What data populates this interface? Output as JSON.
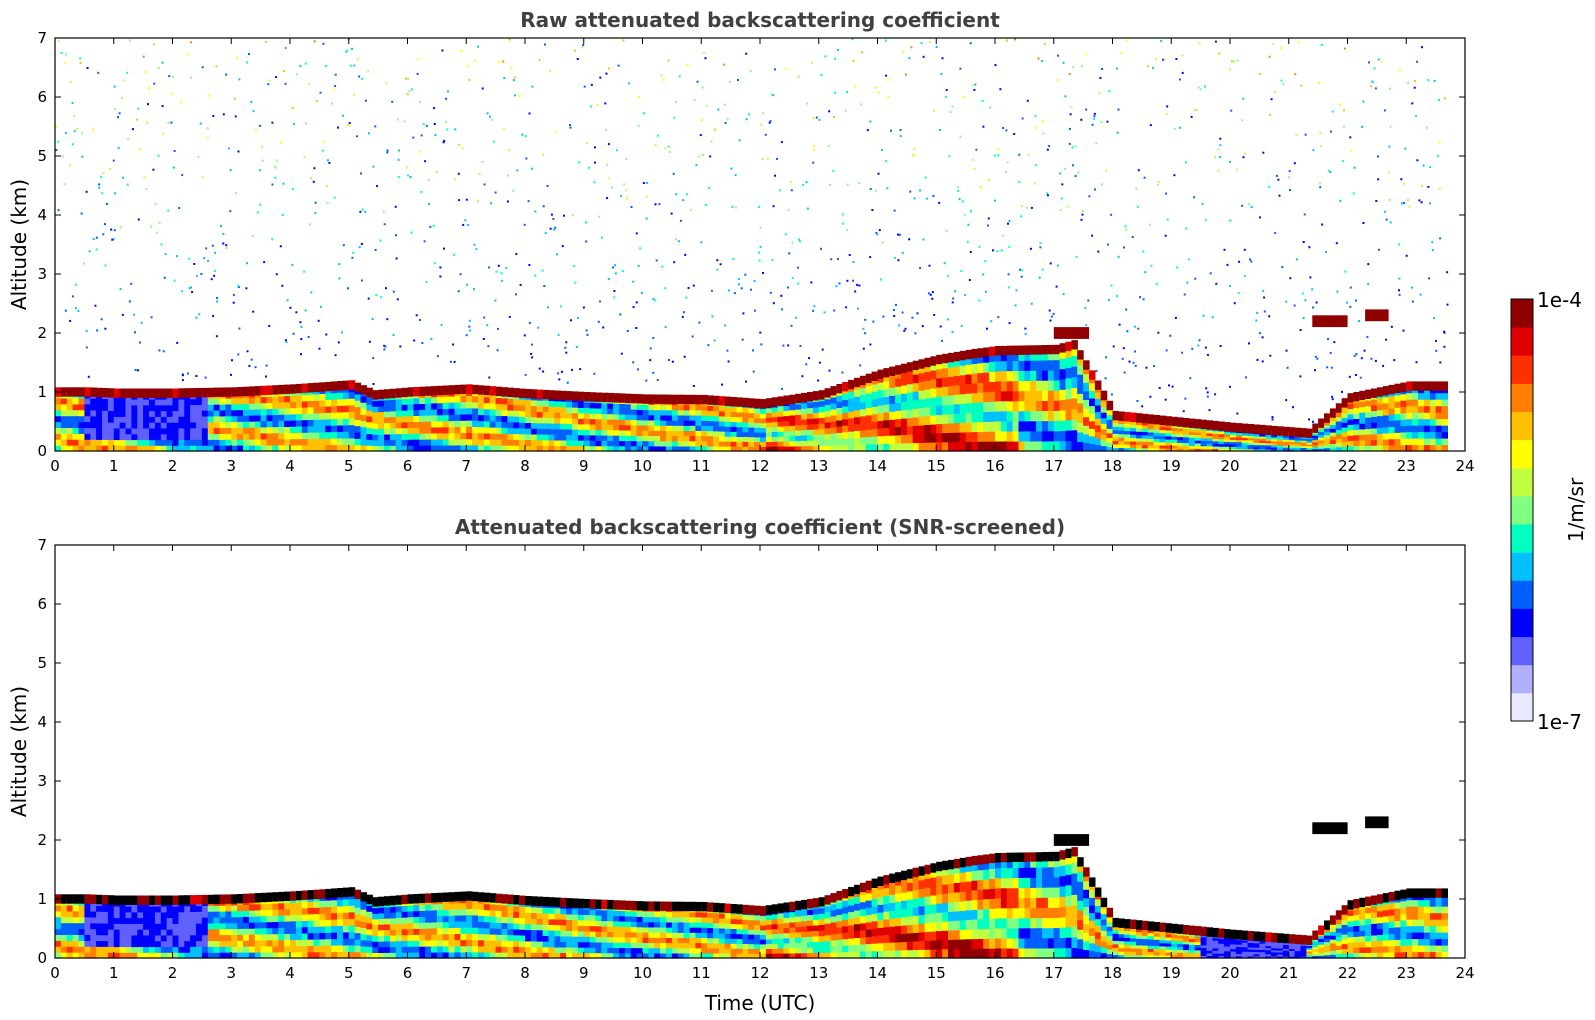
{
  "chart_data": [
    {
      "type": "heatmap",
      "title": "Raw attenuated backscattering coefficient",
      "xlabel": "",
      "ylabel": "Altitude (km)",
      "xlim": [
        0,
        24
      ],
      "ylim": [
        0,
        7
      ],
      "xticks": [
        0,
        1,
        2,
        3,
        4,
        5,
        6,
        7,
        8,
        9,
        10,
        11,
        12,
        13,
        14,
        15,
        16,
        17,
        18,
        19,
        20,
        21,
        22,
        23,
        24
      ],
      "yticks": [
        0,
        1,
        2,
        3,
        4,
        5,
        6,
        7
      ],
      "layers": {
        "boundary_layer_top_km": [
          [
            0,
            1.0
          ],
          [
            0.5,
            1.0
          ],
          [
            1,
            0.98
          ],
          [
            2,
            0.98
          ],
          [
            3,
            1.0
          ],
          [
            4,
            1.05
          ],
          [
            5,
            1.12
          ],
          [
            5.4,
            0.95
          ],
          [
            6,
            1.0
          ],
          [
            7,
            1.05
          ],
          [
            8,
            0.97
          ],
          [
            9,
            0.92
          ],
          [
            10,
            0.88
          ],
          [
            11,
            0.87
          ],
          [
            12,
            0.8
          ],
          [
            13,
            0.95
          ],
          [
            14,
            1.3
          ],
          [
            15,
            1.55
          ],
          [
            15.6,
            1.65
          ],
          [
            16,
            1.7
          ],
          [
            17,
            1.72
          ],
          [
            17.3,
            1.8
          ],
          [
            18,
            0.6
          ],
          [
            19,
            0.5
          ],
          [
            20,
            0.4
          ],
          [
            21.3,
            0.3
          ],
          [
            22,
            0.9
          ],
          [
            23,
            1.1
          ],
          [
            23.7,
            1.1
          ]
        ],
        "elevated_layers_km": [
          {
            "start": 17.0,
            "end": 17.6,
            "alt": 2.0
          },
          {
            "start": 21.4,
            "end": 22.0,
            "alt": 2.2
          },
          {
            "start": 22.3,
            "end": 22.7,
            "alt": 2.3
          }
        ]
      }
    },
    {
      "type": "heatmap",
      "title": "Attenuated backscattering coefficient (SNR-screened)",
      "xlabel": "Time (UTC)",
      "ylabel": "Altitude (km)",
      "xlim": [
        0,
        24
      ],
      "ylim": [
        0,
        7
      ],
      "xticks": [
        0,
        1,
        2,
        3,
        4,
        5,
        6,
        7,
        8,
        9,
        10,
        11,
        12,
        13,
        14,
        15,
        16,
        17,
        18,
        19,
        20,
        21,
        22,
        23,
        24
      ],
      "yticks": [
        0,
        1,
        2,
        3,
        4,
        5,
        6,
        7
      ]
    }
  ],
  "colorbar": {
    "label": "1/m/sr",
    "max_label": "1e-4",
    "min_label": "1e-7",
    "colors": [
      "#e8e8ff",
      "#b0b0ff",
      "#6060ff",
      "#0000ff",
      "#0060ff",
      "#00c0ff",
      "#00ffc0",
      "#80ff80",
      "#c0ff40",
      "#ffff00",
      "#ffc000",
      "#ff8000",
      "#ff3000",
      "#e00000",
      "#900000"
    ]
  },
  "x_tick_labels": [
    "0",
    "1",
    "2",
    "3",
    "4",
    "5",
    "6",
    "7",
    "8",
    "9",
    "10",
    "11",
    "12",
    "13",
    "14",
    "15",
    "16",
    "17",
    "18",
    "19",
    "20",
    "21",
    "22",
    "23",
    "24"
  ],
  "y_tick_labels": [
    "0",
    "1",
    "2",
    "3",
    "4",
    "5",
    "6",
    "7"
  ]
}
